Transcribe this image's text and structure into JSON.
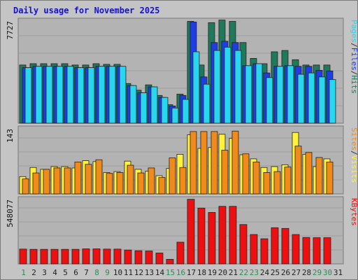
{
  "chart_data": {
    "type": "bar",
    "title": "Daily usage for November 2025",
    "categories": [
      "1",
      "2",
      "3",
      "4",
      "5",
      "6",
      "7",
      "8",
      "9",
      "10",
      "11",
      "12",
      "13",
      "14",
      "15",
      "16",
      "17",
      "18",
      "19",
      "20",
      "21",
      "22",
      "23",
      "24",
      "25",
      "26",
      "27",
      "28",
      "29",
      "30",
      "31"
    ],
    "weekend_days": [
      "1",
      "8",
      "9",
      "15",
      "16",
      "22",
      "23",
      "29",
      "30"
    ],
    "colors": {
      "hits": "#1e7a5a",
      "files": "#1e3de6",
      "pages": "#29d6f0",
      "visits": "#fff23a",
      "sites": "#f08a1a",
      "kbytes": "#ee1010",
      "weekend_label": "#2e8b57",
      "weekday_label": "#1f1f1f"
    },
    "panels": {
      "top": {
        "max_label": "7727",
        "ylim": [
          0,
          7727
        ],
        "series": [
          {
            "name": "Hits",
            "values": [
              4400,
              4500,
              4500,
              4500,
              4500,
              4400,
              4400,
              4500,
              4450,
              4450,
              3000,
              2500,
              2900,
              2100,
              1400,
              2200,
              7700,
              4400,
              7600,
              7800,
              7700,
              6100,
              4900,
              4500,
              5400,
              5500,
              4800,
              4400,
              4400,
              4400,
              0
            ]
          },
          {
            "name": "Files",
            "values": [
              4200,
              4300,
              4300,
              4300,
              4300,
              4200,
              4200,
              4300,
              4300,
              4300,
              2850,
              2300,
              2750,
              1950,
              1300,
              2100,
              7650,
              3500,
              6100,
              6200,
              6100,
              4350,
              4500,
              3800,
              4300,
              4350,
              4300,
              4300,
              4000,
              3950,
              0
            ]
          },
          {
            "name": "Pages",
            "values": [
              4200,
              4300,
              4300,
              4300,
              4300,
              4200,
              4200,
              4300,
              4300,
              4300,
              2850,
              2300,
              2750,
              1950,
              1150,
              1800,
              5400,
              2950,
              5500,
              5750,
              5500,
              4350,
              4500,
              3450,
              4300,
              4350,
              3700,
              3800,
              3500,
              3300,
              0
            ]
          }
        ]
      },
      "middle": {
        "max_label": "143",
        "ylim": [
          0,
          143
        ],
        "series": [
          {
            "name": "Visits",
            "values": [
              38,
              58,
              54,
              60,
              60,
              57,
              73,
              71,
              47,
              49,
              72,
              54,
              50,
              40,
              56,
              87,
              130,
              100,
              102,
              131,
              122,
              86,
              77,
              58,
              60,
              64,
              135,
              87,
              60,
              77,
              0
            ]
          },
          {
            "name": "Sites",
            "values": [
              33,
              46,
              54,
              57,
              57,
              70,
              65,
              75,
              45,
              47,
              63,
              46,
              57,
              36,
              79,
              58,
              137,
              137,
              137,
              96,
              138,
              88,
              70,
              47,
              49,
              59,
              105,
              91,
              80,
              70,
              0
            ]
          }
        ]
      },
      "bottom": {
        "max_label": "548077",
        "ylim": [
          0,
          548077
        ],
        "series": [
          {
            "name": "KBytes",
            "values": [
              126000,
              124000,
              124000,
              124000,
              124000,
              124000,
              128000,
              128000,
              126000,
              126000,
              118000,
              112000,
              110000,
              93000,
              39000,
              185000,
              550000,
              475000,
              438000,
              490000,
              490000,
              335000,
              250000,
              214000,
              308000,
              302000,
              250000,
              225000,
              223000,
              223000,
              0
            ]
          }
        ]
      }
    }
  },
  "legend": {
    "top": [
      {
        "text": "Pages",
        "color": "#29d6f0"
      },
      {
        "text": "/",
        "color": "#333333"
      },
      {
        "text": "Files",
        "color": "#1e3de6"
      },
      {
        "text": "/",
        "color": "#333333"
      },
      {
        "text": "Hits",
        "color": "#1e7a5a"
      }
    ],
    "middle": [
      {
        "text": "Sites",
        "color": "#f08a1a"
      },
      {
        "text": "/",
        "color": "#333333"
      },
      {
        "text": "Visits",
        "color": "#fff23a"
      }
    ],
    "bottom": [
      {
        "text": "KBytes",
        "color": "#ee1010"
      }
    ]
  }
}
